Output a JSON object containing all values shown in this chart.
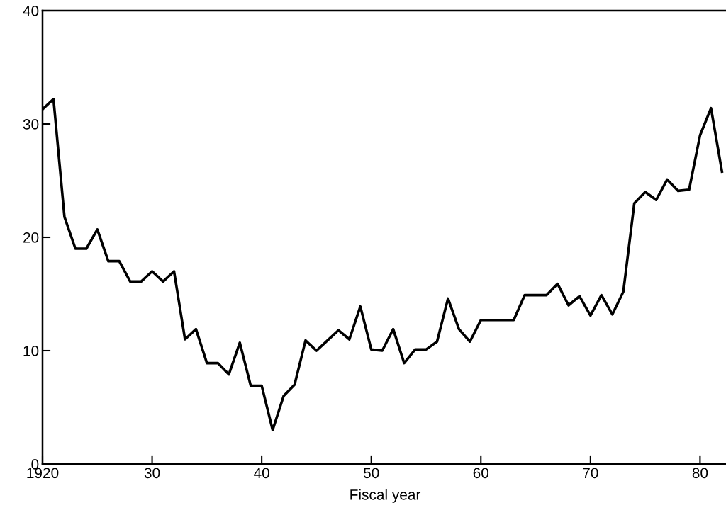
{
  "chart_data": {
    "type": "line",
    "xlabel": "Fiscal year",
    "x": [
      1920,
      1921,
      1922,
      1923,
      1924,
      1925,
      1926,
      1927,
      1928,
      1929,
      1930,
      1931,
      1932,
      1933,
      1934,
      1935,
      1936,
      1937,
      1938,
      1939,
      1940,
      1941,
      1942,
      1943,
      1944,
      1945,
      1946,
      1947,
      1948,
      1949,
      1950,
      1951,
      1952,
      1953,
      1954,
      1955,
      1956,
      1957,
      1958,
      1959,
      1960,
      1961,
      1962,
      1963,
      1964,
      1965,
      1966,
      1967,
      1968,
      1969,
      1970,
      1971,
      1972,
      1973,
      1974,
      1975,
      1976,
      1977,
      1978,
      1979,
      1980,
      1981,
      1982
    ],
    "series": [
      {
        "color": "#000000",
        "values": [
          31.3,
          32.2,
          21.8,
          19.0,
          19.0,
          20.7,
          17.9,
          17.9,
          16.1,
          16.1,
          17.0,
          16.1,
          17.0,
          11.0,
          11.9,
          8.9,
          8.9,
          7.9,
          10.7,
          6.9,
          6.9,
          3.0,
          6.0,
          7.0,
          10.9,
          10.0,
          10.9,
          11.8,
          11.0,
          13.9,
          10.1,
          10.0,
          11.9,
          8.9,
          10.1,
          10.1,
          10.8,
          14.6,
          11.9,
          10.8,
          12.7,
          12.7,
          12.7,
          12.7,
          14.9,
          14.9,
          14.9,
          15.9,
          14.0,
          14.8,
          13.1,
          14.9,
          13.2,
          15.2,
          23.0,
          24.0,
          23.3,
          25.1,
          24.1,
          24.2,
          29.0,
          31.4,
          25.8
        ]
      }
    ],
    "xlim": [
      1920,
      1982.5
    ],
    "ylim": [
      0,
      40
    ],
    "xticks": [
      1920,
      {
        "value": 1930,
        "label": "30"
      },
      {
        "value": 1940,
        "label": "40"
      },
      {
        "value": 1950,
        "label": "50"
      },
      {
        "value": 1960,
        "label": "60"
      },
      {
        "value": 1970,
        "label": "70"
      },
      {
        "value": 1980,
        "label": "80"
      }
    ],
    "yticks": [
      0,
      10,
      20,
      30,
      40
    ],
    "grid": false,
    "legend": false,
    "marker": "none",
    "line_style": "solid"
  }
}
